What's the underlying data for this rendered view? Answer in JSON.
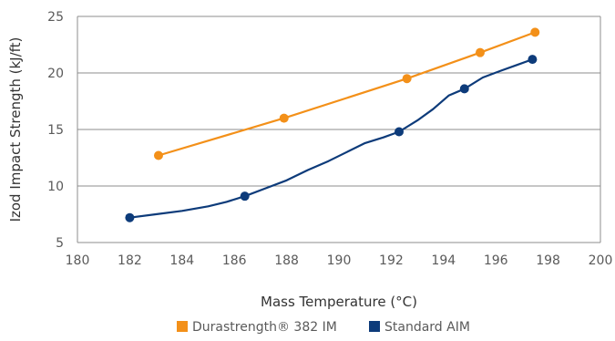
{
  "chart_data": {
    "type": "line",
    "xlabel": "Mass Temperature (°C)",
    "ylabel": "Izod Impact Strength (kJ/ft)",
    "xlim": [
      180,
      200
    ],
    "ylim": [
      5,
      25
    ],
    "xticks": [
      180,
      182,
      184,
      186,
      188,
      190,
      192,
      194,
      196,
      198,
      200
    ],
    "yticks": [
      5,
      10,
      15,
      20,
      25
    ],
    "grid": "horizontal",
    "legend_position": "bottom",
    "series": [
      {
        "name": "Durastrength® 382 IM",
        "color": "#f39019",
        "marker_x": [
          183.1,
          187.9,
          192.6,
          195.4,
          197.5
        ],
        "marker_y": [
          12.7,
          16.0,
          19.5,
          21.8,
          23.6
        ],
        "x": [
          183.1,
          187.9,
          192.6,
          195.4,
          197.5
        ],
        "y": [
          12.7,
          16.0,
          19.5,
          21.8,
          23.6
        ]
      },
      {
        "name": "Standard AIM",
        "color": "#0d3b7a",
        "marker_x": [
          182.0,
          186.4,
          192.3,
          194.8,
          197.4
        ],
        "marker_y": [
          7.2,
          9.1,
          14.8,
          18.6,
          21.2
        ],
        "x": [
          182.0,
          183.0,
          184.0,
          185.0,
          185.7,
          186.4,
          187.2,
          188.0,
          188.8,
          189.6,
          190.3,
          191.0,
          191.7,
          192.3,
          193.0,
          193.6,
          194.2,
          194.8,
          195.5,
          196.2,
          196.8,
          197.4
        ],
        "y": [
          7.2,
          7.5,
          7.8,
          8.2,
          8.6,
          9.1,
          9.8,
          10.5,
          11.4,
          12.2,
          13.0,
          13.8,
          14.3,
          14.8,
          15.8,
          16.8,
          18.0,
          18.6,
          19.6,
          20.2,
          20.7,
          21.2
        ]
      }
    ]
  }
}
